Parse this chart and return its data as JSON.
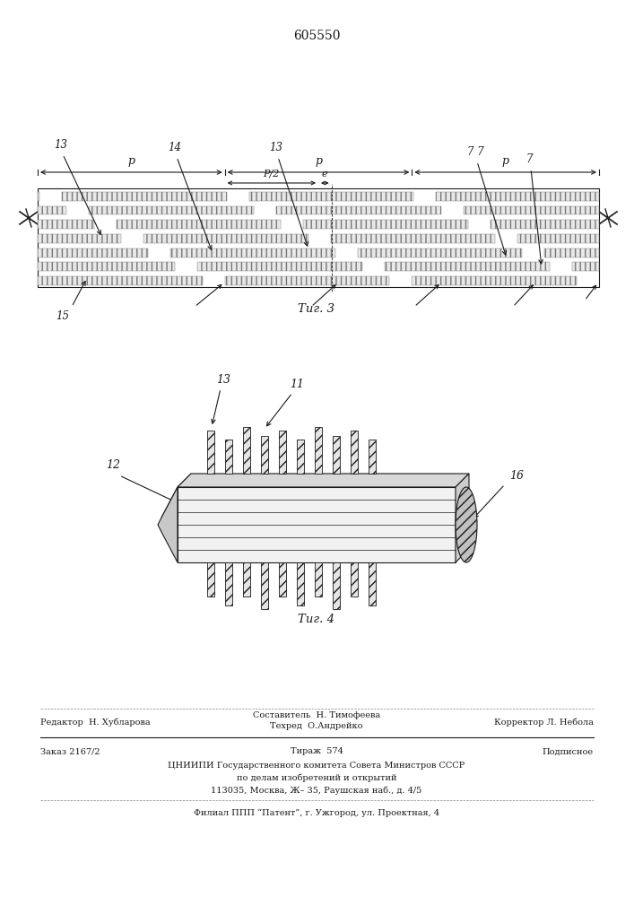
{
  "patent_number": "605550",
  "fig3_caption": "Τиг. 3",
  "fig4_caption": "Τиг. 4",
  "background_color": "#ffffff",
  "line_color": "#1a1a1a",
  "editor_line": "Редактор  Н. Хубларова",
  "composer_line1": "Составитель  Н. Тимофеева",
  "composer_line2": "Техред  О.Андрейко",
  "corrector_line": "Корректор Л. Небола",
  "order_line": "Заказ 2167/2",
  "tirazh_line": "Тираж  574",
  "podpisnoe": "Подписное",
  "tsniipI_line": "ЦНИИПИ Государственного комитета Совета Министров СССР",
  "po_delam": "по делам изобретений и открытий",
  "address": "113035, Москва, Ж– 35, Раушская наб., д. 4/5",
  "filial": "Филиал ППП “Патент”, г. Ужгород, ул. Проектная, 4"
}
